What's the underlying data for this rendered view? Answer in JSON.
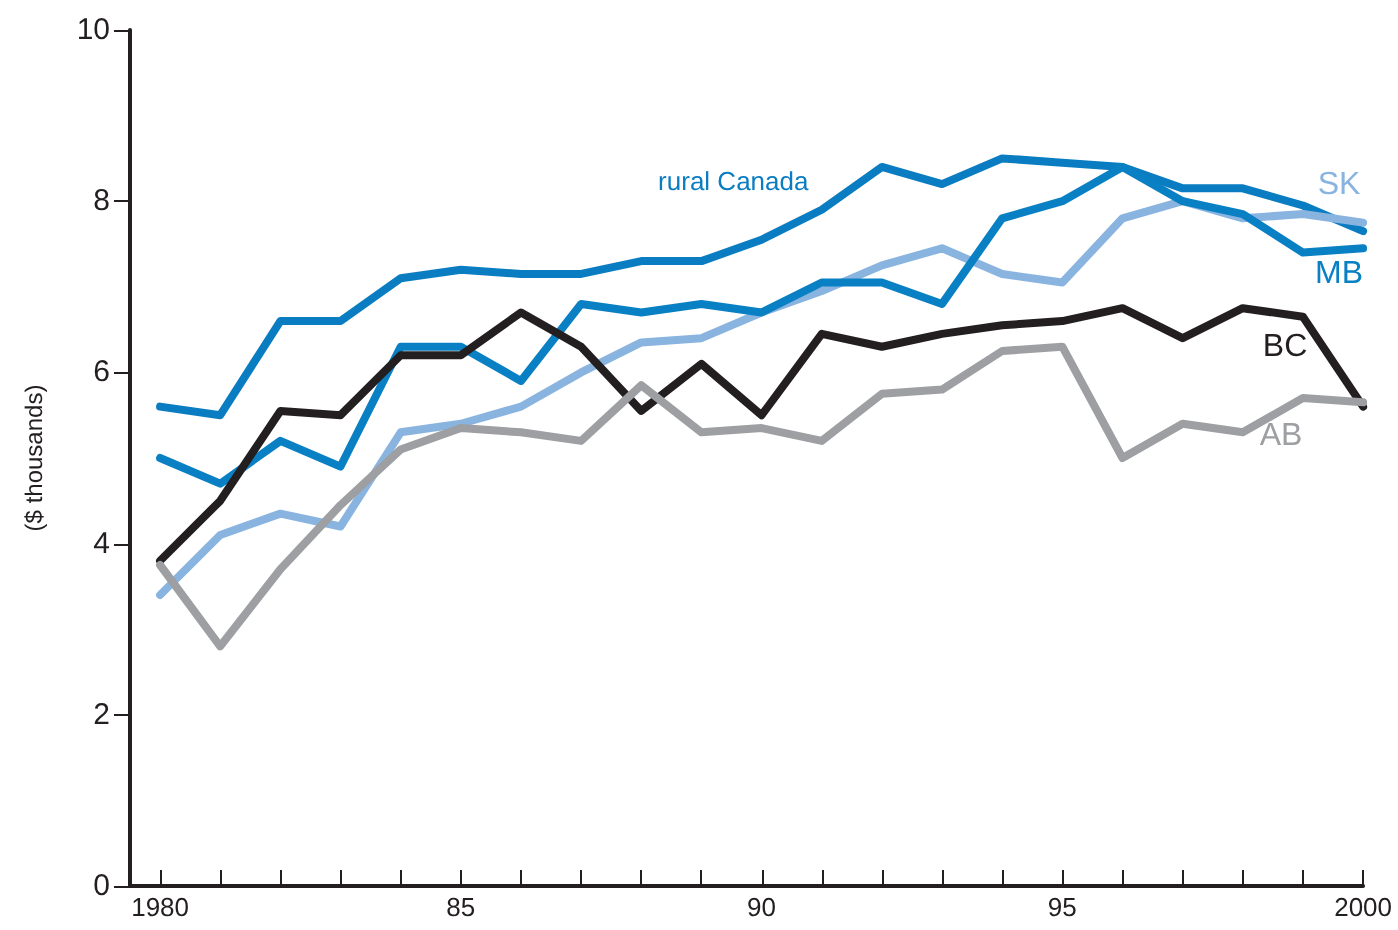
{
  "chart_data": {
    "type": "line",
    "ylabel": "($ thousands)",
    "x": [
      1980,
      1981,
      1982,
      1983,
      1984,
      1985,
      1986,
      1987,
      1988,
      1989,
      1990,
      1991,
      1992,
      1993,
      1994,
      1995,
      1996,
      1997,
      1998,
      1999,
      2000
    ],
    "series": [
      {
        "name": "rural Canada",
        "color": "#0a7cc1",
        "values": [
          5.6,
          5.5,
          6.6,
          6.6,
          7.1,
          7.2,
          7.15,
          7.15,
          7.3,
          7.3,
          7.55,
          7.9,
          8.4,
          8.2,
          8.5,
          8.45,
          8.4,
          8.15,
          8.15,
          7.95,
          7.65
        ]
      },
      {
        "name": "SK",
        "color": "#8ab4e0",
        "values": [
          3.4,
          4.1,
          4.35,
          4.2,
          5.3,
          5.4,
          5.6,
          6.0,
          6.35,
          6.4,
          6.7,
          6.95,
          7.25,
          7.45,
          7.15,
          7.05,
          7.8,
          8.0,
          7.8,
          7.85,
          7.75
        ]
      },
      {
        "name": "MB",
        "color": "#0a80c4",
        "values": [
          5.0,
          4.7,
          5.2,
          4.9,
          6.3,
          6.3,
          5.9,
          6.8,
          6.7,
          6.8,
          6.7,
          7.05,
          7.05,
          6.8,
          7.8,
          8.0,
          8.4,
          8.0,
          7.85,
          7.4,
          7.45
        ]
      },
      {
        "name": "BC",
        "color": "#231f20",
        "values": [
          3.8,
          4.5,
          5.55,
          5.5,
          6.2,
          6.2,
          6.7,
          6.3,
          5.55,
          6.1,
          5.5,
          6.45,
          6.3,
          6.45,
          6.55,
          6.6,
          6.75,
          6.4,
          6.75,
          6.65,
          5.6
        ]
      },
      {
        "name": "AB",
        "color": "#9d9fa2",
        "values": [
          3.75,
          2.8,
          3.7,
          4.45,
          5.1,
          5.35,
          5.3,
          5.2,
          5.85,
          5.3,
          5.35,
          5.2,
          5.75,
          5.8,
          6.25,
          6.3,
          5.0,
          5.4,
          5.3,
          5.7,
          5.65
        ]
      }
    ],
    "xlim": [
      1979.5,
      2000
    ],
    "xticks": [
      {
        "value": 1980,
        "label": "1980"
      },
      {
        "value": 1981,
        "label": null
      },
      {
        "value": 1982,
        "label": null
      },
      {
        "value": 1983,
        "label": null
      },
      {
        "value": 1984,
        "label": null
      },
      {
        "value": 1985,
        "label": "85"
      },
      {
        "value": 1986,
        "label": null
      },
      {
        "value": 1987,
        "label": null
      },
      {
        "value": 1988,
        "label": null
      },
      {
        "value": 1989,
        "label": null
      },
      {
        "value": 1990,
        "label": "90"
      },
      {
        "value": 1991,
        "label": null
      },
      {
        "value": 1992,
        "label": null
      },
      {
        "value": 1993,
        "label": null
      },
      {
        "value": 1994,
        "label": null
      },
      {
        "value": 1995,
        "label": "95"
      },
      {
        "value": 1996,
        "label": null
      },
      {
        "value": 1997,
        "label": null
      },
      {
        "value": 1998,
        "label": null
      },
      {
        "value": 1999,
        "label": null
      },
      {
        "value": 2000,
        "label": "2000"
      }
    ],
    "ylim": [
      0,
      10
    ],
    "yticks": [
      0,
      2,
      4,
      6,
      8,
      10
    ],
    "grid": false,
    "legend": false,
    "marker": "none",
    "line_style": "solid"
  }
}
